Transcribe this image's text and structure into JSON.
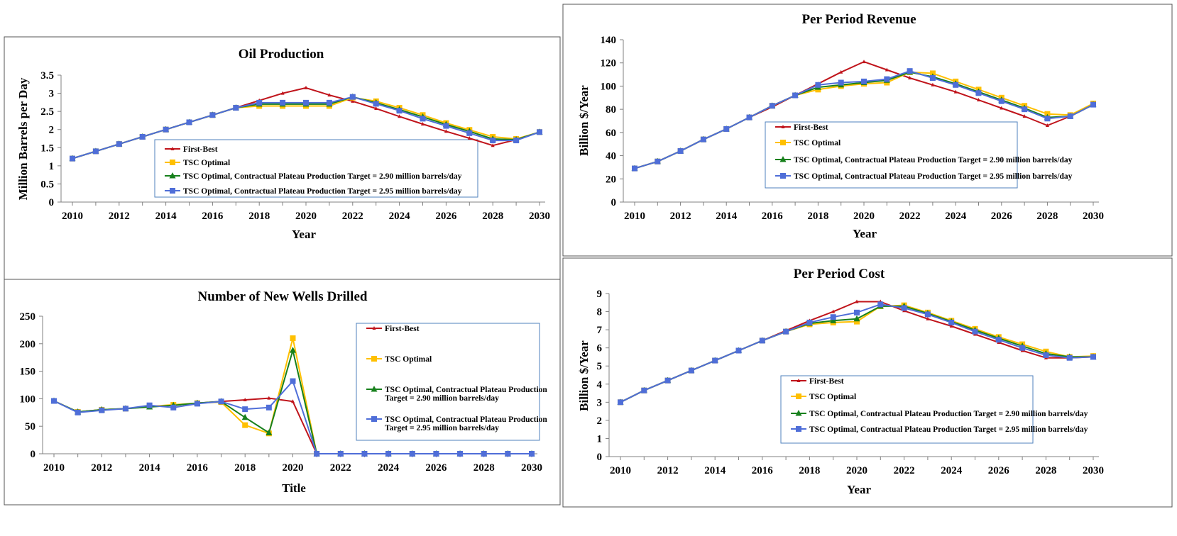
{
  "colors": {
    "first_best": "#c0141b",
    "tsc_optimal": "#ffc000",
    "tsc_290": "#17801c",
    "tsc_295": "#4f6ed8"
  },
  "chart_data": [
    {
      "type": "line",
      "title": "Oil Production",
      "xlabel": "Year",
      "ylabel": "Million Barrels per Day",
      "x": [
        2010,
        2011,
        2012,
        2013,
        2014,
        2015,
        2016,
        2017,
        2018,
        2019,
        2020,
        2021,
        2022,
        2023,
        2024,
        2025,
        2026,
        2027,
        2028,
        2029,
        2030
      ],
      "xticks": [
        "2010",
        "2012",
        "2014",
        "2016",
        "2018",
        "2020",
        "2022",
        "2024",
        "2026",
        "2028",
        "2030"
      ],
      "yticks": [
        "0",
        "0.5",
        "1",
        "1.5",
        "2",
        "2.5",
        "3",
        "3.5"
      ],
      "ylim": [
        0,
        3.5
      ],
      "legend_position": "inside-bottom",
      "series": [
        {
          "name": "First-Best",
          "values": [
            1.2,
            1.4,
            1.6,
            1.8,
            2.0,
            2.2,
            2.4,
            2.6,
            2.8,
            3.0,
            3.15,
            2.95,
            2.78,
            2.58,
            2.36,
            2.15,
            1.95,
            1.76,
            1.56,
            1.72,
            1.93
          ]
        },
        {
          "name": "TSC Optimal",
          "values": [
            1.2,
            1.4,
            1.6,
            1.8,
            2.0,
            2.2,
            2.4,
            2.6,
            2.65,
            2.65,
            2.65,
            2.65,
            2.88,
            2.78,
            2.6,
            2.4,
            2.18,
            1.99,
            1.8,
            1.74,
            1.93
          ]
        },
        {
          "name": "TSC Optimal, Contractual Plateau Production Target = 2.90 million barrels/day",
          "values": [
            1.2,
            1.4,
            1.6,
            1.8,
            2.0,
            2.2,
            2.4,
            2.6,
            2.7,
            2.7,
            2.7,
            2.7,
            2.9,
            2.74,
            2.55,
            2.35,
            2.14,
            1.95,
            1.74,
            1.72,
            1.93
          ]
        },
        {
          "name": "TSC Optimal, Contractual Plateau Production Target = 2.95 million barrels/day",
          "values": [
            1.2,
            1.4,
            1.6,
            1.8,
            2.0,
            2.2,
            2.4,
            2.6,
            2.74,
            2.74,
            2.74,
            2.74,
            2.9,
            2.71,
            2.52,
            2.3,
            2.1,
            1.9,
            1.7,
            1.7,
            1.93
          ]
        }
      ]
    },
    {
      "type": "line",
      "title": "Per Period Revenue",
      "xlabel": "Year",
      "ylabel": "Billion $/Year",
      "x": [
        2010,
        2011,
        2012,
        2013,
        2014,
        2015,
        2016,
        2017,
        2018,
        2019,
        2020,
        2021,
        2022,
        2023,
        2024,
        2025,
        2026,
        2027,
        2028,
        2029,
        2030
      ],
      "xticks": [
        "2010",
        "2012",
        "2014",
        "2016",
        "2018",
        "2020",
        "2022",
        "2024",
        "2026",
        "2028",
        "2030"
      ],
      "yticks": [
        "0",
        "20",
        "40",
        "60",
        "80",
        "100",
        "120",
        "140"
      ],
      "ylim": [
        0,
        140
      ],
      "legend_position": "inside-bottom",
      "series": [
        {
          "name": "First-Best",
          "values": [
            29,
            35,
            44,
            54,
            63,
            73,
            82,
            92,
            102,
            112,
            121,
            114,
            107,
            101,
            95,
            88,
            81,
            74,
            66,
            74,
            84
          ]
        },
        {
          "name": "TSC Optimal",
          "values": [
            29,
            35,
            44,
            54,
            63,
            73,
            83,
            92,
            97,
            100,
            102,
            103,
            112,
            111,
            104,
            97,
            90,
            83,
            76,
            75,
            85
          ]
        },
        {
          "name": "TSC Optimal, Contractual Plateau Production Target = 2.90 million barrels/day",
          "values": [
            29,
            35,
            44,
            54,
            63,
            73,
            83,
            92,
            99,
            101,
            103,
            105,
            112,
            108,
            102,
            95,
            88,
            81,
            73,
            74,
            84
          ]
        },
        {
          "name": "TSC Optimal, Contractual Plateau Production Target = 2.95 million barrels/day",
          "values": [
            29,
            35,
            44,
            54,
            63,
            73,
            83,
            92,
            101,
            103,
            104,
            106,
            113,
            107,
            101,
            94,
            87,
            80,
            72,
            74,
            84
          ]
        }
      ]
    },
    {
      "type": "line",
      "title": "Number of New Wells Drilled",
      "xlabel": "Title",
      "ylabel": "",
      "x": [
        2010,
        2011,
        2012,
        2013,
        2014,
        2015,
        2016,
        2017,
        2018,
        2019,
        2020,
        2021,
        2022,
        2023,
        2024,
        2025,
        2026,
        2027,
        2028,
        2029,
        2030
      ],
      "xticks": [
        "2010",
        "2012",
        "2014",
        "2016",
        "2018",
        "2020",
        "2022",
        "2024",
        "2026",
        "2028",
        "2030"
      ],
      "yticks": [
        "0",
        "50",
        "100",
        "150",
        "200",
        "250"
      ],
      "ylim": [
        0,
        250
      ],
      "legend_position": "right",
      "series": [
        {
          "name": "First-Best",
          "values": [
            96,
            76,
            80,
            82,
            86,
            88,
            92,
            95,
            98,
            101,
            95,
            0,
            0,
            0,
            0,
            0,
            0,
            0,
            0,
            0,
            0
          ]
        },
        {
          "name": "TSC Optimal",
          "values": [
            96,
            76,
            80,
            82,
            86,
            89,
            92,
            94,
            52,
            37,
            210,
            0,
            0,
            0,
            0,
            0,
            0,
            0,
            0,
            0,
            0
          ]
        },
        {
          "name": "TSC Optimal, Contractual Plateau Production Target = 2.90 million barrels/day",
          "values": [
            96,
            76,
            80,
            82,
            85,
            88,
            92,
            95,
            66,
            38,
            188,
            0,
            0,
            0,
            0,
            0,
            0,
            0,
            0,
            0,
            0
          ]
        },
        {
          "name": "TSC Optimal, Contractual Plateau Production Target = 2.95 million barrels/day",
          "values": [
            96,
            75,
            79,
            82,
            88,
            84,
            91,
            95,
            81,
            84,
            132,
            0,
            0,
            0,
            0,
            0,
            0,
            0,
            0,
            0,
            0
          ]
        }
      ]
    },
    {
      "type": "line",
      "title": "Per Period Cost",
      "xlabel": "Year",
      "ylabel": "Billion $/Year",
      "x": [
        2010,
        2011,
        2012,
        2013,
        2014,
        2015,
        2016,
        2017,
        2018,
        2019,
        2020,
        2021,
        2022,
        2023,
        2024,
        2025,
        2026,
        2027,
        2028,
        2029,
        2030
      ],
      "xticks": [
        "2010",
        "2012",
        "2014",
        "2016",
        "2018",
        "2020",
        "2022",
        "2024",
        "2026",
        "2028",
        "2030"
      ],
      "yticks": [
        "0",
        "1",
        "2",
        "3",
        "4",
        "5",
        "6",
        "7",
        "8",
        "9"
      ],
      "ylim": [
        0,
        9
      ],
      "legend_position": "inside-bottom",
      "series": [
        {
          "name": "First-Best",
          "values": [
            3.0,
            3.65,
            4.2,
            4.75,
            5.3,
            5.85,
            6.4,
            6.95,
            7.5,
            8.0,
            8.55,
            8.55,
            8.05,
            7.6,
            7.2,
            6.75,
            6.3,
            5.85,
            5.45,
            5.45,
            5.5
          ]
        },
        {
          "name": "TSC Optimal",
          "values": [
            3.0,
            3.65,
            4.2,
            4.75,
            5.3,
            5.85,
            6.4,
            6.9,
            7.3,
            7.4,
            7.45,
            8.3,
            8.35,
            7.95,
            7.5,
            7.05,
            6.6,
            6.2,
            5.8,
            5.5,
            5.55
          ]
        },
        {
          "name": "TSC Optimal, Contractual Plateau Production Target = 2.90 million barrels/day",
          "values": [
            3.0,
            3.65,
            4.2,
            4.75,
            5.3,
            5.85,
            6.4,
            6.9,
            7.35,
            7.5,
            7.6,
            8.3,
            8.3,
            7.9,
            7.45,
            6.98,
            6.53,
            6.1,
            5.68,
            5.5,
            5.5
          ]
        },
        {
          "name": "TSC Optimal, Contractual Plateau Production Target = 2.95 million barrels/day",
          "values": [
            3.0,
            3.65,
            4.2,
            4.75,
            5.3,
            5.85,
            6.4,
            6.9,
            7.4,
            7.7,
            7.95,
            8.4,
            8.2,
            7.85,
            7.4,
            6.9,
            6.45,
            6.0,
            5.6,
            5.45,
            5.5
          ]
        }
      ]
    }
  ]
}
